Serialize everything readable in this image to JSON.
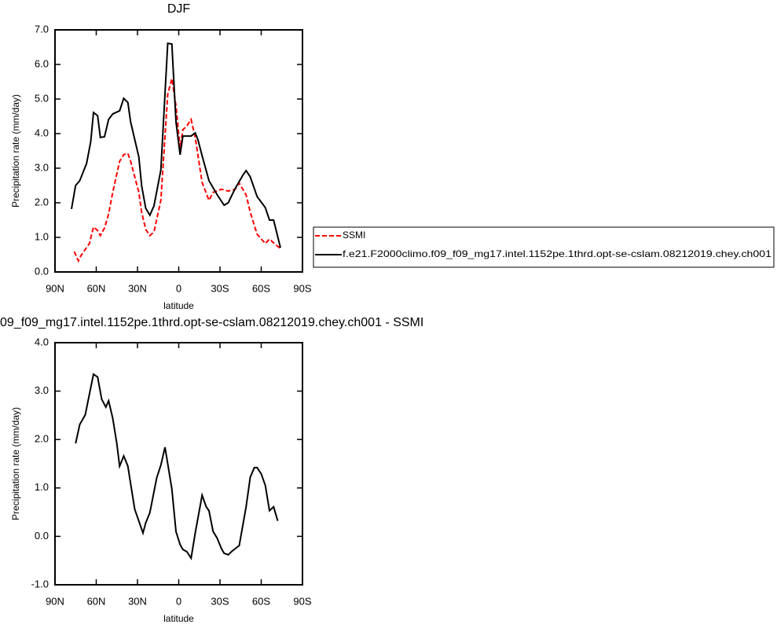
{
  "chart_data": [
    {
      "type": "line",
      "title": "DJF",
      "xlabel": "latitude",
      "ylabel": "Precipitation rate (mm/day)",
      "xlim": [
        90,
        -90
      ],
      "xticks": [
        {
          "value": 90,
          "label": "90N"
        },
        {
          "value": 60,
          "label": "60N"
        },
        {
          "value": 30,
          "label": "30N"
        },
        0,
        {
          "value": -30,
          "label": "30S"
        },
        {
          "value": -60,
          "label": "60S"
        },
        {
          "value": -90,
          "label": "90S"
        }
      ],
      "ylim": [
        0,
        7
      ],
      "yticks": [
        {
          "value": 0,
          "label": "0.0"
        },
        {
          "value": 1,
          "label": "1.0"
        },
        {
          "value": 2,
          "label": "2.0"
        },
        {
          "value": 3,
          "label": "3.0"
        },
        {
          "value": 4,
          "label": "4.0"
        },
        {
          "value": 5,
          "label": "5.0"
        },
        {
          "value": 6,
          "label": "6.0"
        },
        {
          "value": 7,
          "label": "7.0"
        }
      ],
      "legend": "right",
      "series": [
        {
          "name": "SSMI",
          "color": "#ff0000",
          "dashed": true,
          "x": [
            76,
            73,
            71,
            65,
            62,
            59,
            57,
            54,
            51,
            48,
            43,
            40,
            37,
            35,
            29,
            27,
            24,
            21,
            18,
            13,
            8,
            5,
            2,
            -1,
            -3,
            -6,
            -9,
            -12,
            -17,
            -22,
            -25,
            -31,
            -36,
            -41,
            -44,
            -49,
            -52,
            -57,
            -63,
            -66,
            -71,
            -74
          ],
          "values": [
            0.59,
            0.32,
            0.48,
            0.82,
            1.3,
            1.2,
            1.05,
            1.27,
            1.68,
            2.3,
            3.2,
            3.39,
            3.43,
            3.2,
            2.3,
            1.73,
            1.23,
            1.05,
            1.16,
            2.07,
            5.14,
            5.59,
            4.8,
            3.59,
            4.11,
            4.23,
            4.41,
            3.89,
            2.59,
            2.07,
            2.3,
            2.39,
            2.34,
            2.39,
            2.57,
            2.23,
            1.73,
            1.09,
            0.82,
            0.95,
            0.77,
            0.68
          ]
        },
        {
          "name": "f.e21.F2000climo.f09_f09_mg17.intel.1152pe.1thrd.opt-se-cslam.08212019.chey.ch001",
          "color": "#000000",
          "dashed": false,
          "x": [
            78,
            75,
            72,
            67,
            64,
            62,
            59,
            57,
            54,
            51,
            48,
            43,
            40,
            37,
            35,
            29,
            27,
            24,
            21,
            18,
            13,
            8,
            5,
            2,
            -1,
            -3,
            -9,
            -12,
            -14,
            -17,
            -20,
            -22,
            -28,
            -33,
            -36,
            -41,
            -47,
            -49,
            -52,
            -57,
            -63,
            -66,
            -69,
            -74
          ],
          "values": [
            1.82,
            2.5,
            2.64,
            3.14,
            3.77,
            4.61,
            4.52,
            3.89,
            3.91,
            4.41,
            4.57,
            4.66,
            5.02,
            4.9,
            4.34,
            3.32,
            2.5,
            1.84,
            1.64,
            1.91,
            2.95,
            6.61,
            6.59,
            4.34,
            3.39,
            3.93,
            3.93,
            4.02,
            3.82,
            3.36,
            2.93,
            2.64,
            2.23,
            1.93,
            2.0,
            2.41,
            2.82,
            2.93,
            2.75,
            2.18,
            1.86,
            1.5,
            1.5,
            0.7
          ]
        }
      ]
    },
    {
      "type": "line",
      "title": "09_f09_mg17.intel.1152pe.1thrd.opt-se-cslam.08212019.chey.ch001 - SSMI",
      "xlabel": "latitude",
      "ylabel": "Precipitation rate (mm/day)",
      "xlim": [
        90,
        -90
      ],
      "xticks": [
        {
          "value": 90,
          "label": "90N"
        },
        {
          "value": 60,
          "label": "60N"
        },
        {
          "value": 30,
          "label": "30N"
        },
        0,
        {
          "value": -30,
          "label": "30S"
        },
        {
          "value": -60,
          "label": "60S"
        },
        {
          "value": -90,
          "label": "90S"
        }
      ],
      "ylim": [
        -1,
        4
      ],
      "yticks": [
        {
          "value": -1,
          "label": "-1.0"
        },
        {
          "value": 0,
          "label": "0.0"
        },
        {
          "value": 1,
          "label": "1.0"
        },
        {
          "value": 2,
          "label": "2.0"
        },
        {
          "value": 3,
          "label": "3.0"
        },
        {
          "value": 4,
          "label": "4.0"
        }
      ],
      "series": [
        {
          "color": "#000000",
          "dashed": false,
          "x": [
            75,
            72,
            68,
            62,
            59,
            56,
            53,
            51,
            48,
            45,
            43,
            40,
            37,
            35,
            32,
            26,
            24,
            21,
            16,
            13,
            10,
            8,
            5,
            2,
            -1,
            -3,
            -6,
            -9,
            -12,
            -17,
            -20,
            -22,
            -25,
            -28,
            -31,
            -33,
            -36,
            -39,
            -44,
            -49,
            -52,
            -55,
            -57,
            -60,
            -63,
            -66,
            -69,
            -72
          ],
          "values": [
            1.92,
            2.31,
            2.51,
            3.35,
            3.29,
            2.83,
            2.67,
            2.8,
            2.44,
            1.91,
            1.45,
            1.66,
            1.45,
            1.09,
            0.56,
            0.07,
            0.28,
            0.49,
            1.21,
            1.47,
            1.84,
            1.5,
            0.98,
            0.1,
            -0.17,
            -0.27,
            -0.32,
            -0.45,
            0.07,
            0.85,
            0.61,
            0.53,
            0.1,
            -0.04,
            -0.25,
            -0.35,
            -0.38,
            -0.3,
            -0.19,
            0.61,
            1.22,
            1.42,
            1.42,
            1.29,
            1.05,
            0.53,
            0.61,
            0.32
          ]
        }
      ]
    }
  ]
}
